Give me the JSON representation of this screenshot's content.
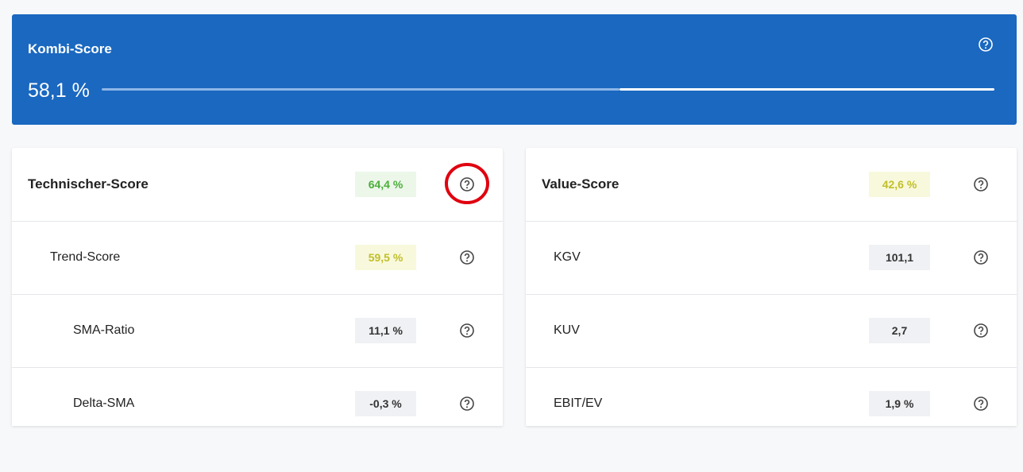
{
  "header": {
    "title": "Kombi-Score",
    "value": "58,1 %"
  },
  "panels": [
    {
      "title": "Technischer-Score",
      "value": "64,4 %",
      "rows": [
        {
          "label": "Trend-Score",
          "value": "59,5 %"
        },
        {
          "label": "SMA-Ratio",
          "value": "11,1 %"
        },
        {
          "label": "Delta-SMA",
          "value": "-0,3 %"
        }
      ]
    },
    {
      "title": "Value-Score",
      "value": "42,6 %",
      "rows": [
        {
          "label": "KGV",
          "value": "101,1"
        },
        {
          "label": "KUV",
          "value": "2,7"
        },
        {
          "label": "EBIT/EV",
          "value": "1,9 %"
        }
      ]
    }
  ]
}
